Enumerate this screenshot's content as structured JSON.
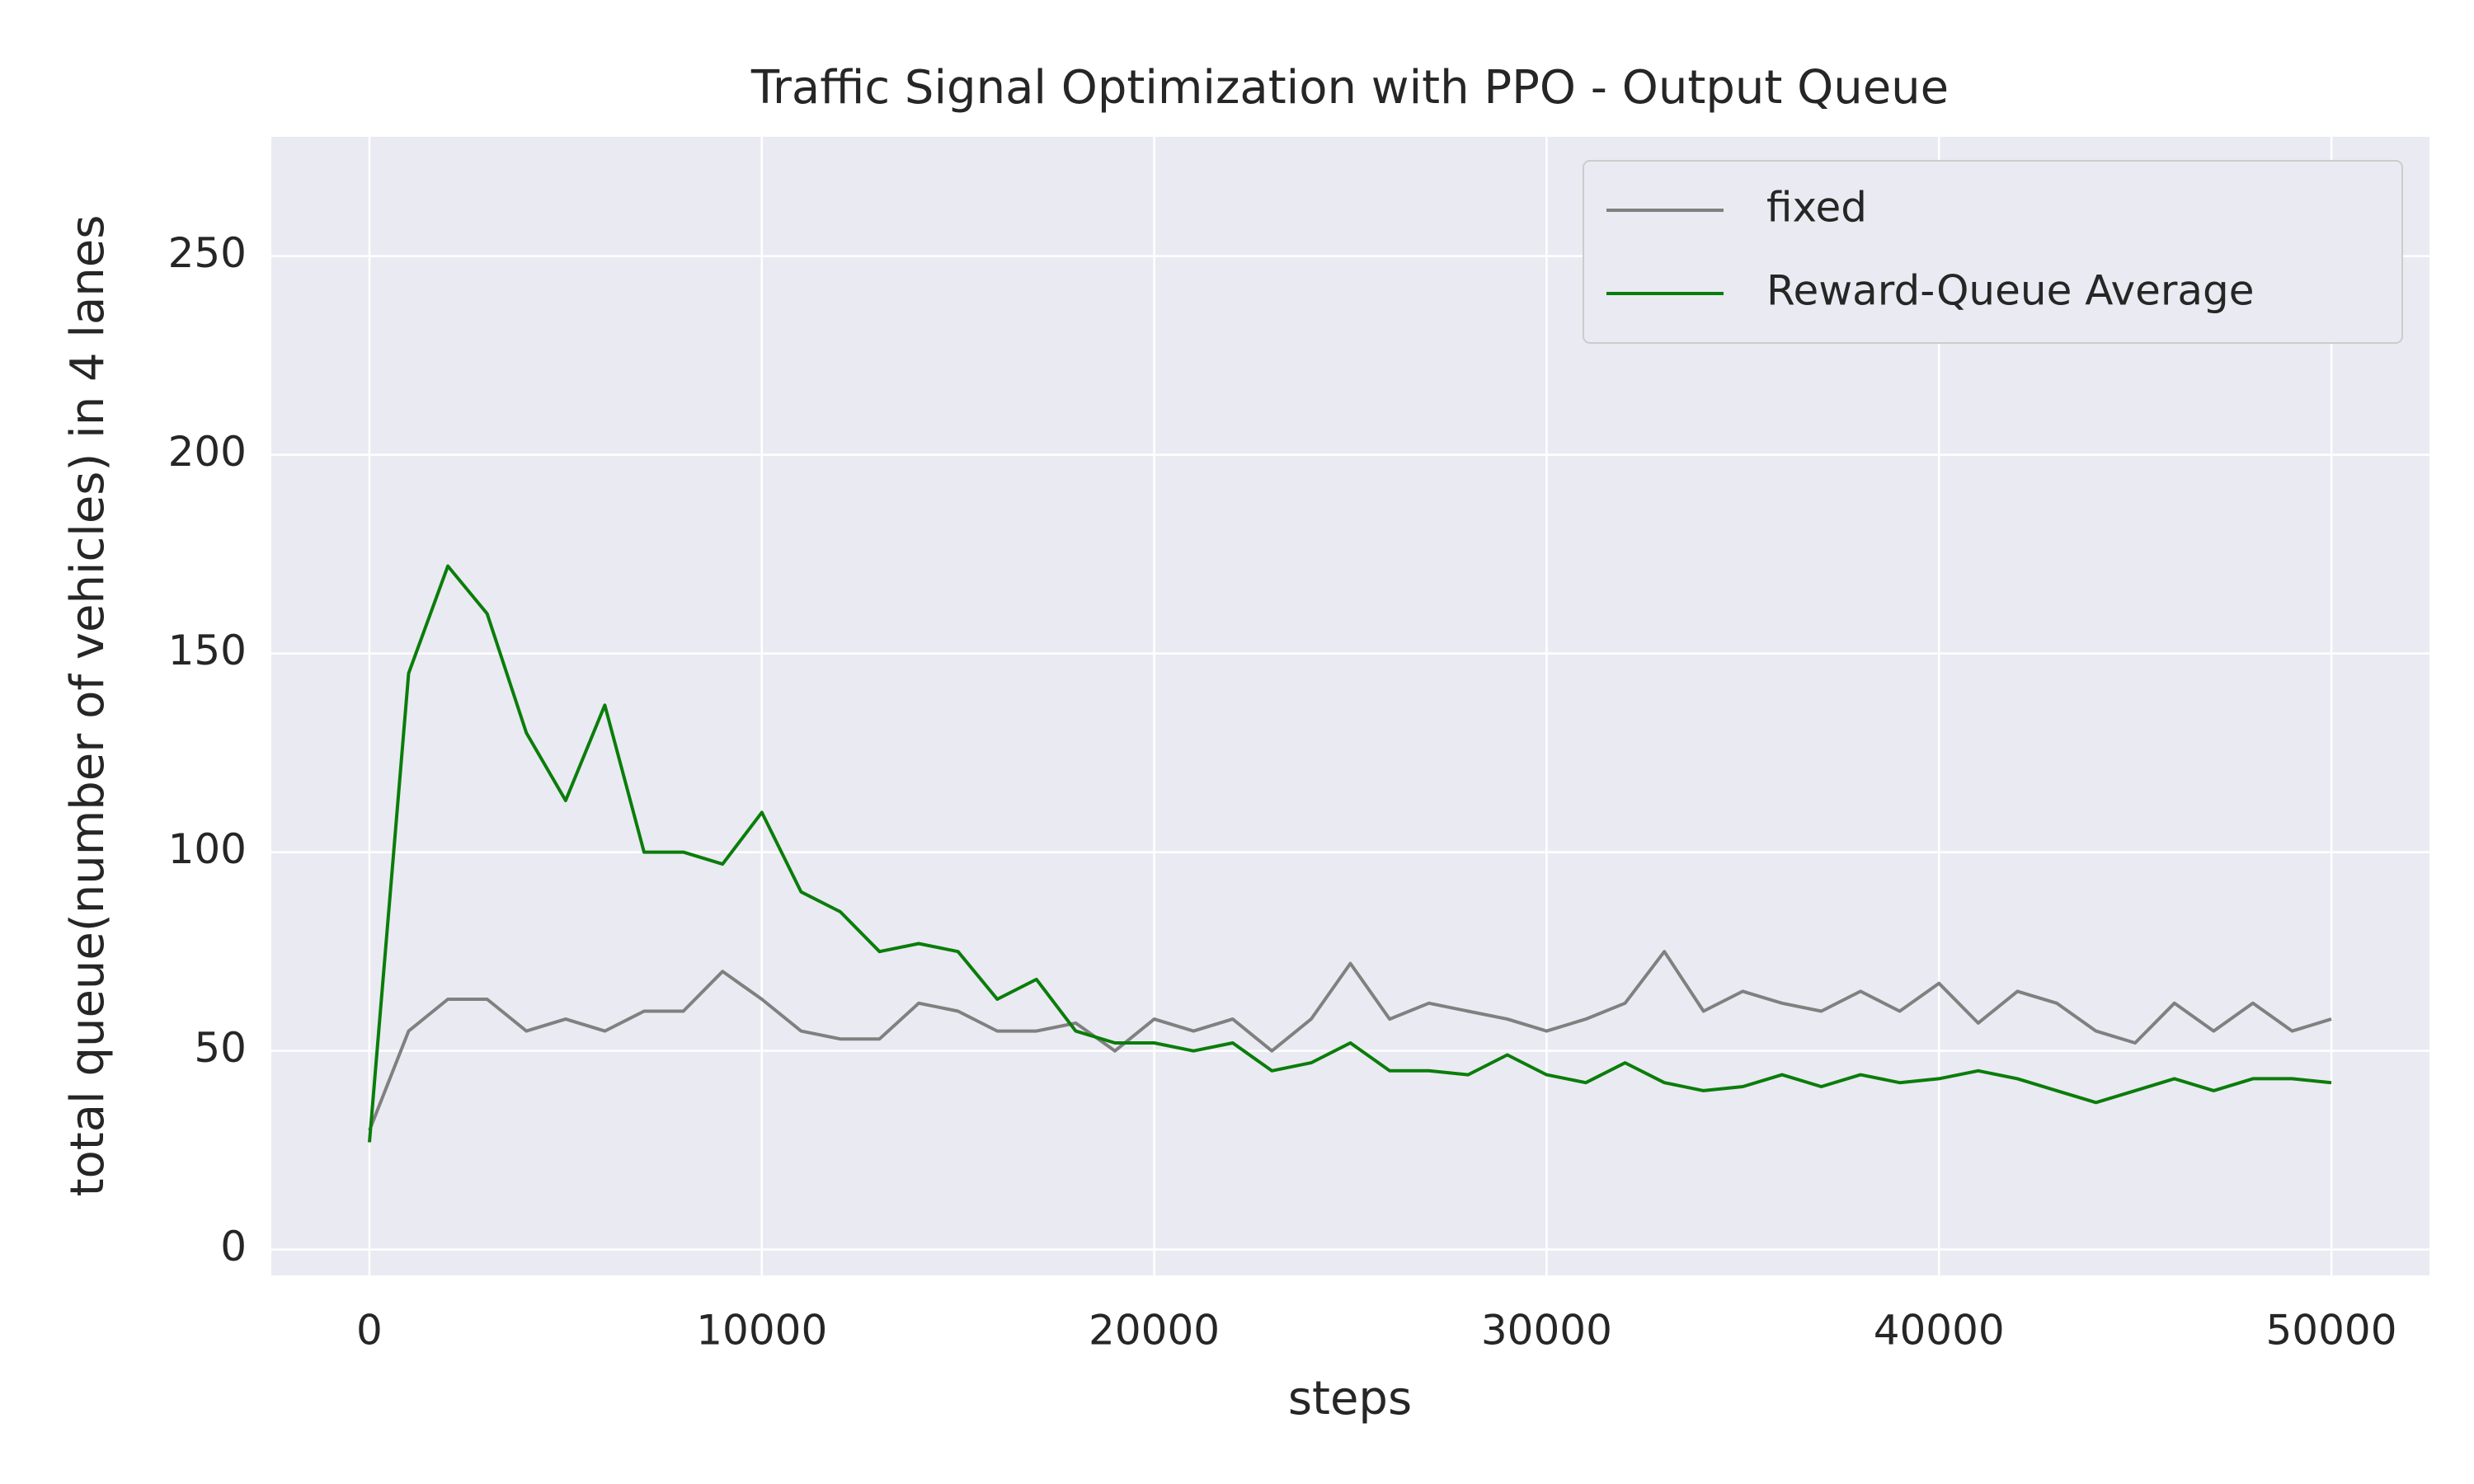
{
  "chart_data": {
    "type": "line",
    "title": "Traffic Signal Optimization with PPO - Output Queue",
    "xlabel": "steps",
    "ylabel": "total queue(number of vehicles) in 4 lanes",
    "x": [
      0,
      1000,
      2000,
      3000,
      4000,
      5000,
      6000,
      7000,
      8000,
      9000,
      10000,
      11000,
      12000,
      13000,
      14000,
      15000,
      16000,
      17000,
      18000,
      19000,
      20000,
      21000,
      22000,
      23000,
      24000,
      25000,
      26000,
      27000,
      28000,
      29000,
      30000,
      31000,
      32000,
      33000,
      34000,
      35000,
      36000,
      37000,
      38000,
      39000,
      40000,
      41000,
      42000,
      43000,
      44000,
      45000,
      46000,
      47000,
      48000,
      49000,
      50000
    ],
    "series": [
      {
        "name": "fixed",
        "color": "#808080",
        "values": [
          30,
          55,
          63,
          63,
          55,
          58,
          55,
          60,
          60,
          70,
          63,
          55,
          53,
          53,
          62,
          60,
          55,
          55,
          57,
          50,
          58,
          55,
          58,
          50,
          58,
          72,
          58,
          62,
          60,
          58,
          55,
          58,
          62,
          75,
          60,
          65,
          62,
          60,
          65,
          60,
          67,
          57,
          65,
          62,
          55,
          52,
          62,
          55,
          62,
          55,
          58
        ]
      },
      {
        "name": "Reward-Queue Average",
        "color": "#0a7d0a",
        "values": [
          27,
          145,
          172,
          160,
          130,
          113,
          137,
          100,
          100,
          97,
          110,
          90,
          85,
          75,
          77,
          75,
          63,
          68,
          55,
          52,
          52,
          50,
          52,
          45,
          47,
          52,
          45,
          45,
          44,
          49,
          44,
          42,
          47,
          42,
          40,
          41,
          44,
          41,
          44,
          42,
          43,
          45,
          43,
          40,
          37,
          40,
          43,
          40,
          43,
          43,
          42
        ]
      }
    ],
    "xlim": [
      -2500,
      52500
    ],
    "xticks": [
      0,
      10000,
      20000,
      30000,
      40000,
      50000
    ],
    "ylim": [
      -6.5,
      280
    ],
    "yticks": [
      0,
      50,
      100,
      150,
      200,
      250
    ],
    "grid": true,
    "legend": "upper right"
  }
}
